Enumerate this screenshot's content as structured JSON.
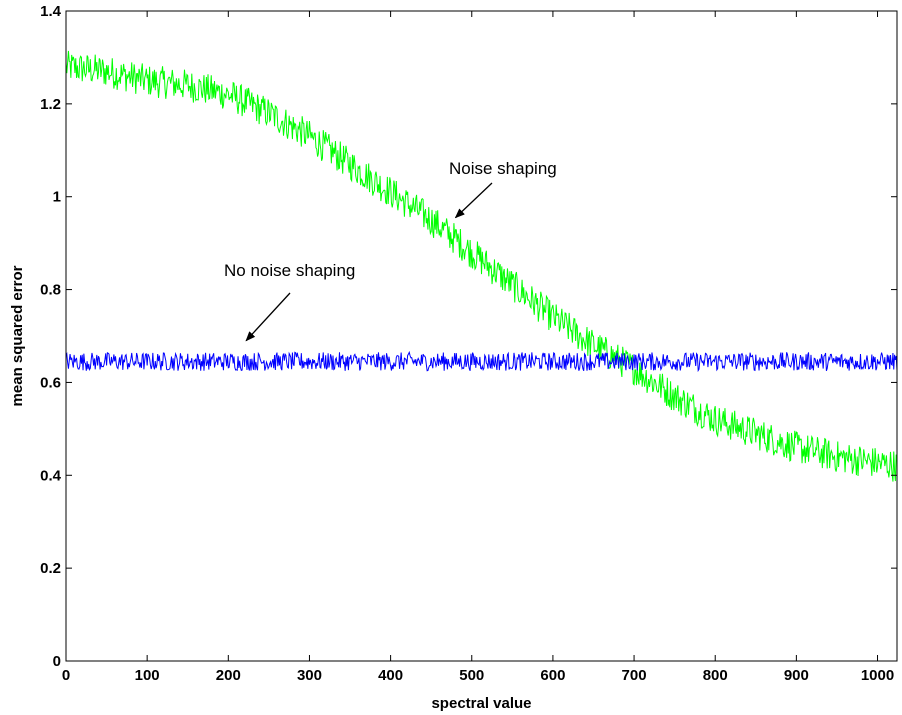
{
  "chart_data": {
    "type": "line",
    "title": "",
    "xlabel": "spectral value",
    "ylabel": "mean squared error",
    "xlim": [
      0,
      1024
    ],
    "ylim": [
      0,
      1.4
    ],
    "xticks": [
      0,
      100,
      200,
      300,
      400,
      500,
      600,
      700,
      800,
      900,
      1000
    ],
    "yticks": [
      0,
      0.2,
      0.4,
      0.6,
      0.8,
      1,
      1.2,
      1.4
    ],
    "xtick_labels": [
      "0",
      "100",
      "200",
      "300",
      "400",
      "500",
      "600",
      "700",
      "800",
      "900",
      "1000"
    ],
    "ytick_labels": [
      "0",
      "0.2",
      "0.4",
      "0.6",
      "0.8",
      "1",
      "1.2",
      "1.4"
    ],
    "grid": false,
    "series": [
      {
        "color": "#00ff00",
        "trend": {
          "x": [
            0,
            50,
            100,
            150,
            200,
            250,
            300,
            350,
            400,
            450,
            500,
            550,
            600,
            650,
            700,
            750,
            800,
            850,
            900,
            950,
            1024
          ],
          "y": [
            1.28,
            1.27,
            1.25,
            1.24,
            1.22,
            1.18,
            1.13,
            1.07,
            1.01,
            0.95,
            0.88,
            0.81,
            0.74,
            0.68,
            0.63,
            0.57,
            0.52,
            0.49,
            0.46,
            0.44,
            0.42
          ]
        },
        "noise_amplitude": 0.035
      },
      {
        "color": "#0000ff",
        "trend": {
          "x": [
            0,
            1024
          ],
          "y": [
            0.645,
            0.645
          ]
        },
        "noise_amplitude": 0.02
      }
    ],
    "annotations": [
      {
        "text": "Noise shaping",
        "target": {
          "x": 480,
          "y": 0.955
        }
      },
      {
        "text": "No noise shaping",
        "target": {
          "x": 222,
          "y": 0.69
        }
      }
    ]
  }
}
